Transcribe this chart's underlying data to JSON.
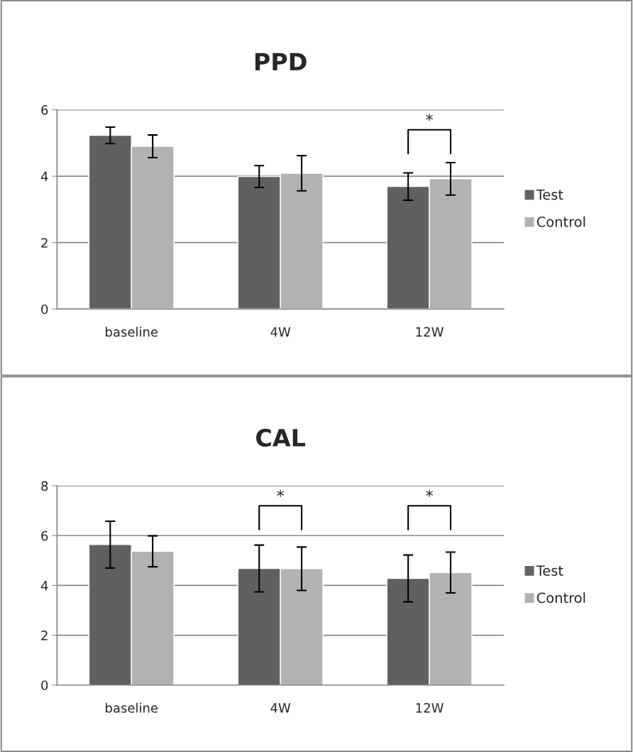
{
  "chart_data": [
    {
      "type": "bar",
      "title": "PPD",
      "categories": [
        "baseline",
        "4W",
        "12W"
      ],
      "series": [
        {
          "name": "Test",
          "color": "#606060",
          "values": [
            5.23,
            3.99,
            3.69
          ],
          "errors": [
            0.25,
            0.33,
            0.41
          ]
        },
        {
          "name": "Control",
          "color": "#b2b2b2",
          "values": [
            4.9,
            4.09,
            3.92
          ],
          "errors": [
            0.34,
            0.53,
            0.49
          ]
        }
      ],
      "ylim": [
        0,
        6
      ],
      "yticks": [
        0,
        2,
        4,
        6
      ],
      "grid": "y",
      "legend": "right",
      "annotations": [
        "*"
      ]
    },
    {
      "type": "bar",
      "title": "CAL",
      "categories": [
        "baseline",
        "4W",
        "12W"
      ],
      "series": [
        {
          "name": "Test",
          "color": "#606060",
          "values": [
            5.64,
            4.68,
            4.28
          ],
          "errors": [
            0.94,
            0.94,
            0.94
          ]
        },
        {
          "name": "Control",
          "color": "#b2b2b2",
          "values": [
            5.37,
            4.67,
            4.52
          ],
          "errors": [
            0.62,
            0.87,
            0.82
          ]
        }
      ],
      "ylim": [
        0,
        8
      ],
      "yticks": [
        0,
        2,
        4,
        6,
        8
      ],
      "grid": "y",
      "legend": "right",
      "annotations": [
        "*",
        "*"
      ]
    }
  ]
}
